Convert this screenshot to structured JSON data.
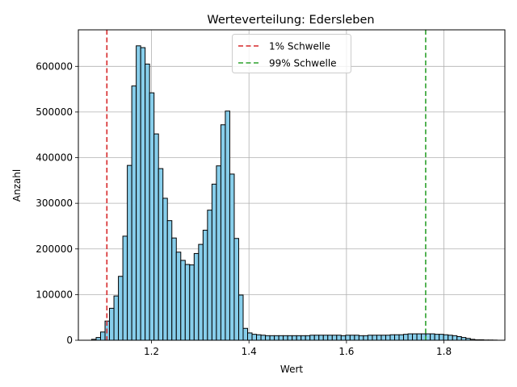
{
  "chart_data": {
    "type": "bar",
    "title": "Werteverteilung: Edersleben",
    "xlabel": "Wert",
    "ylabel": "Anzahl",
    "xlim": [
      1.05,
      1.925
    ],
    "ylim": [
      0,
      680000
    ],
    "xticks": [
      1.2,
      1.4,
      1.6,
      1.8
    ],
    "xtick_labels": [
      "1.2",
      "1.4",
      "1.6",
      "1.8"
    ],
    "yticks": [
      0,
      100000,
      200000,
      300000,
      400000,
      500000,
      600000
    ],
    "ytick_labels": [
      "0",
      "100000",
      "200000",
      "300000",
      "400000",
      "500000",
      "600000"
    ],
    "grid": true,
    "legend_position": "top-center",
    "bar_color": "#87ceeb",
    "bar_edge_color": "#000000",
    "bin_start": 1.0773,
    "bin_width": 0.00914,
    "values": [
      2000,
      6000,
      18000,
      42000,
      70000,
      97000,
      140000,
      228000,
      383000,
      557000,
      645000,
      641000,
      605000,
      542000,
      452000,
      376000,
      311000,
      262000,
      224000,
      193000,
      175000,
      166000,
      165000,
      190000,
      210000,
      241000,
      285000,
      342000,
      382000,
      472000,
      502000,
      364000,
      223000,
      99000,
      26000,
      16000,
      13000,
      12000,
      11000,
      10000,
      10000,
      10000,
      10000,
      10000,
      10000,
      10000,
      10000,
      10000,
      10000,
      11000,
      11000,
      11000,
      11000,
      11000,
      11000,
      11000,
      10000,
      11000,
      11000,
      11000,
      10000,
      10000,
      11000,
      11000,
      11000,
      11000,
      11000,
      12000,
      12000,
      12000,
      13000,
      14000,
      14000,
      14000,
      14000,
      14000,
      14000,
      13000,
      13000,
      12000,
      11000,
      10000,
      8000,
      6000,
      4000,
      2000,
      1000,
      1000,
      500,
      500,
      300
    ],
    "reference_lines": [
      {
        "label": "1% Schwelle",
        "x": 1.1085,
        "color": "#d62728"
      },
      {
        "label": "99% Schwelle",
        "x": 1.7625,
        "color": "#2ca02c"
      }
    ]
  }
}
